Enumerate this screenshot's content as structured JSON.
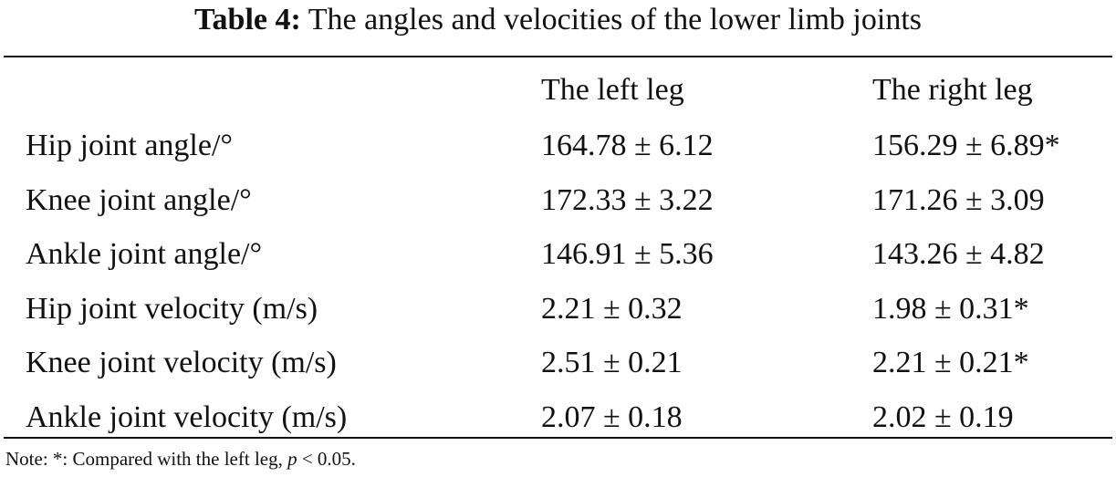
{
  "caption": {
    "label": "Table 4:",
    "text": "The angles and velocities of the lower limb joints"
  },
  "table": {
    "columns": [
      "",
      "The left leg",
      "The right leg"
    ],
    "rows": [
      {
        "label": "Hip joint angle/°",
        "left": "164.78 ± 6.12",
        "right": "156.29 ± 6.89*"
      },
      {
        "label": "Knee joint angle/°",
        "left": "172.33 ± 3.22",
        "right": "171.26 ± 3.09"
      },
      {
        "label": "Ankle joint angle/°",
        "left": "146.91 ± 5.36",
        "right": "143.26 ± 4.82"
      },
      {
        "label": "Hip joint velocity (m/s)",
        "left": "2.21 ± 0.32",
        "right": "1.98 ± 0.31*"
      },
      {
        "label": "Knee joint velocity (m/s)",
        "left": "2.51 ± 0.21",
        "right": "2.21 ± 0.21*"
      },
      {
        "label": "Ankle joint velocity (m/s)",
        "left": "2.07 ± 0.18",
        "right": "2.02 ± 0.19"
      }
    ]
  },
  "note": {
    "prefix": "Note: *: Compared with the left leg, ",
    "p_symbol": "p",
    "suffix": " < 0.05."
  }
}
